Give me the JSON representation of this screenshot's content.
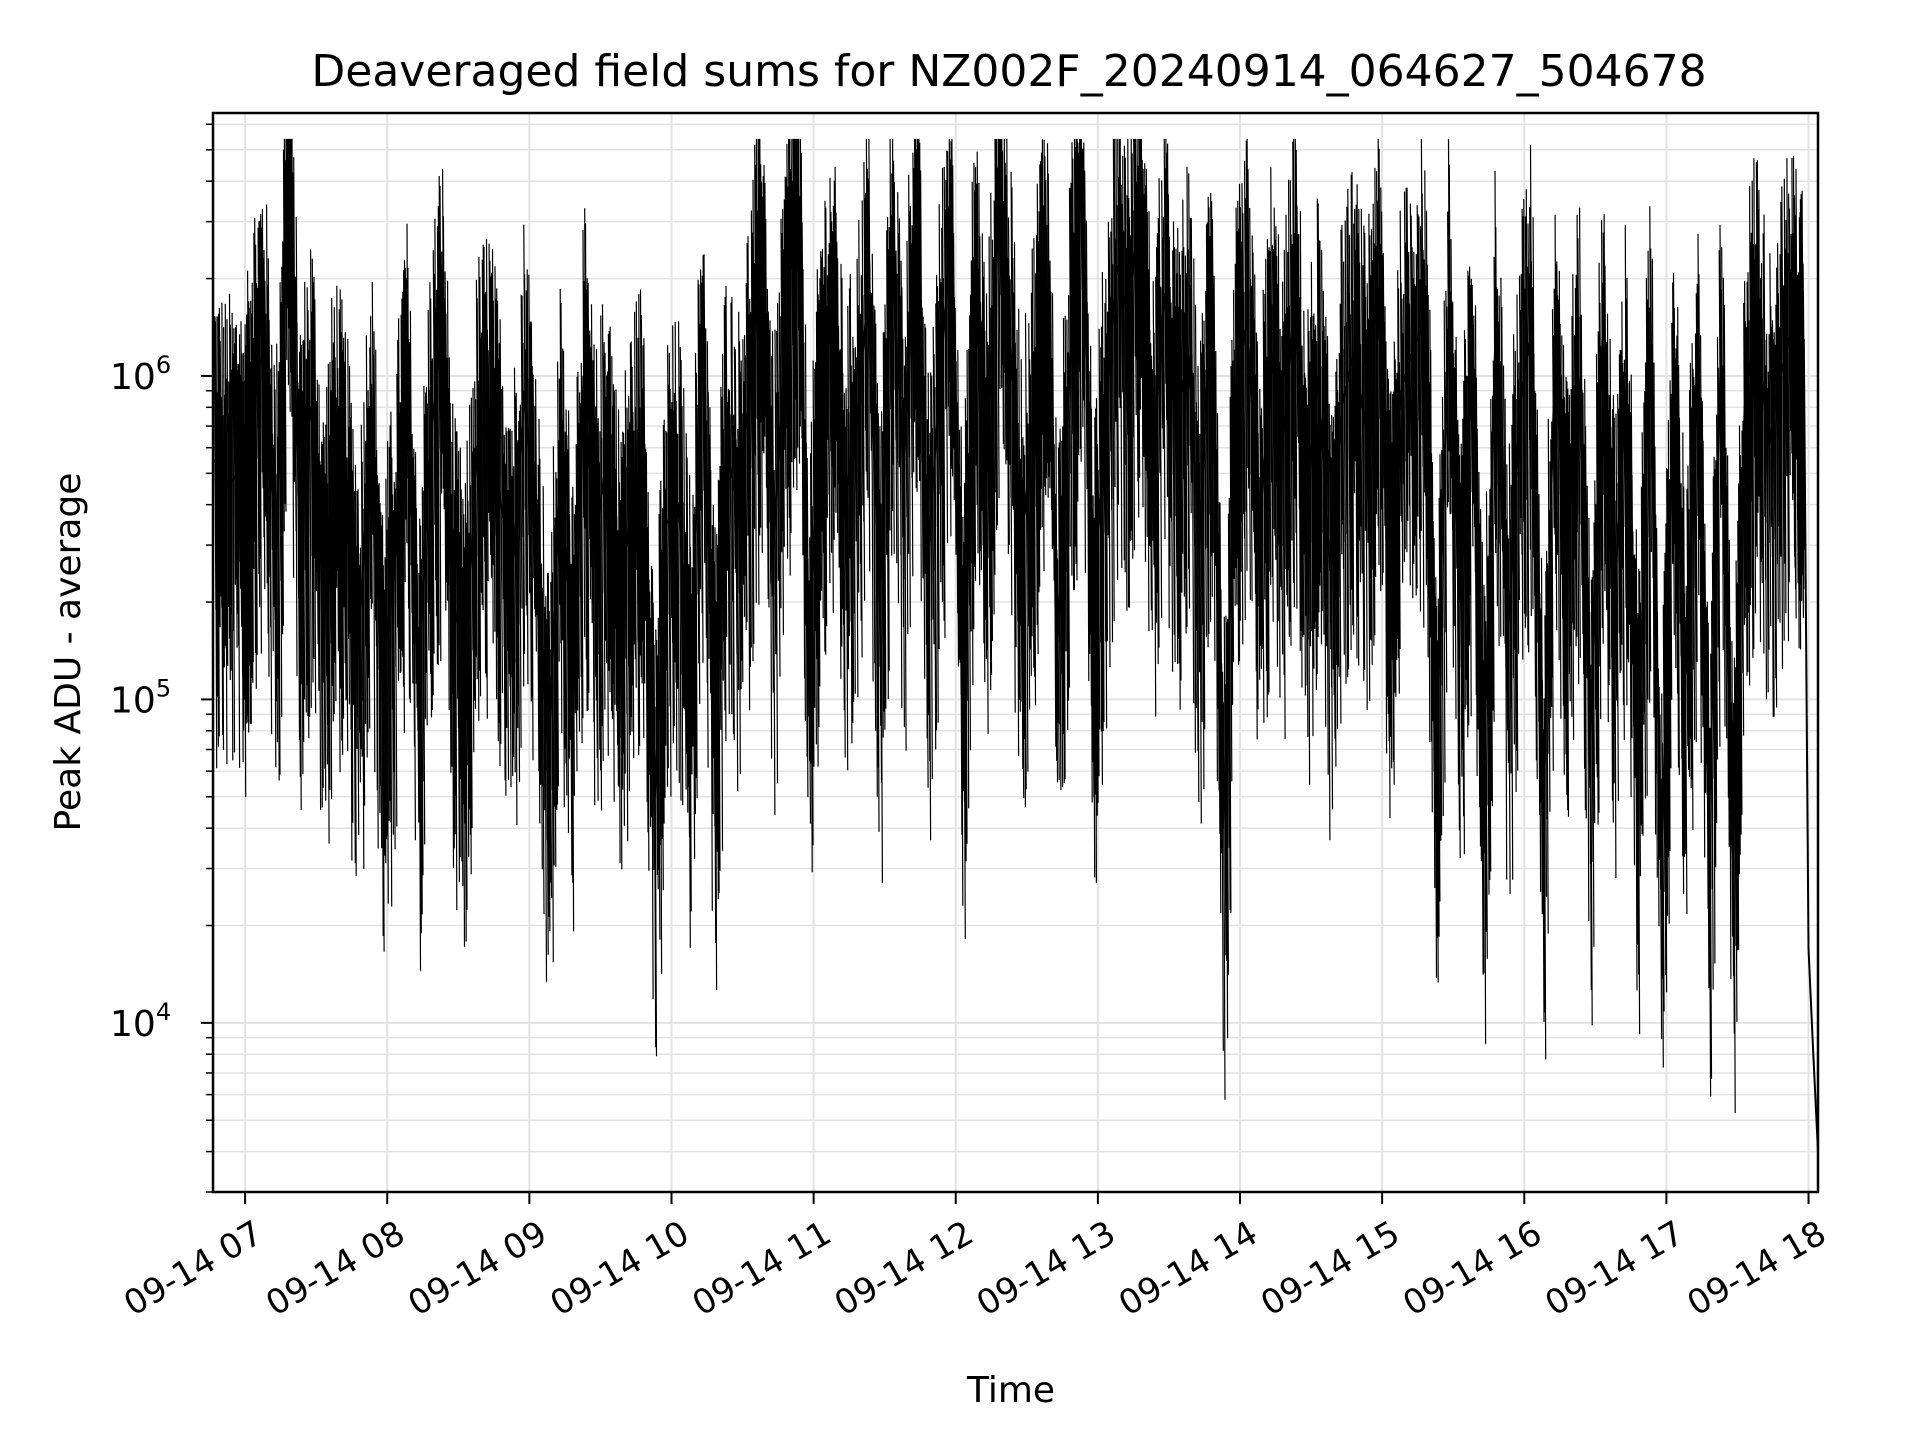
{
  "chart_data": {
    "type": "line",
    "title": "Deaveraged field sums for NZ002F_20240914_064627_504678",
    "xlabel": "Time",
    "ylabel": "Peak ADU - average",
    "yscale": "log",
    "xlim": [
      "2024-09-14 06:46:27",
      "2024-09-14 18:04:00"
    ],
    "ylim": [
      3000,
      6500000
    ],
    "grid": true,
    "legend": "none",
    "line_color": "#000000",
    "x_ticks": [
      {
        "label": "09-14 07",
        "time": "2024-09-14 07:00"
      },
      {
        "label": "09-14 08",
        "time": "2024-09-14 08:00"
      },
      {
        "label": "09-14 09",
        "time": "2024-09-14 09:00"
      },
      {
        "label": "09-14 10",
        "time": "2024-09-14 10:00"
      },
      {
        "label": "09-14 11",
        "time": "2024-09-14 11:00"
      },
      {
        "label": "09-14 12",
        "time": "2024-09-14 12:00"
      },
      {
        "label": "09-14 13",
        "time": "2024-09-14 13:00"
      },
      {
        "label": "09-14 14",
        "time": "2024-09-14 14:00"
      },
      {
        "label": "09-14 15",
        "time": "2024-09-14 15:00"
      },
      {
        "label": "09-14 16",
        "time": "2024-09-14 16:00"
      },
      {
        "label": "09-14 17",
        "time": "2024-09-14 17:00"
      },
      {
        "label": "09-14 18",
        "time": "2024-09-14 18:00"
      }
    ],
    "y_ticks": [
      {
        "base": "10",
        "exp": "4",
        "value": 10000
      },
      {
        "base": "10",
        "exp": "5",
        "value": 100000
      },
      {
        "base": "10",
        "exp": "6",
        "value": 1000000
      }
    ],
    "series": [
      {
        "x": [
          "2024-09-14 06:47",
          "2024-09-14 06:52",
          "2024-09-14 06:57",
          "2024-09-14 07:00",
          "2024-09-14 07:03",
          "2024-09-14 07:08",
          "2024-09-14 07:13",
          "2024-09-14 07:18",
          "2024-09-14 07:23",
          "2024-09-14 07:28",
          "2024-09-14 07:33",
          "2024-09-14 07:38",
          "2024-09-14 07:43",
          "2024-09-14 07:48",
          "2024-09-14 07:53",
          "2024-09-14 07:58",
          "2024-09-14 08:03",
          "2024-09-14 08:08",
          "2024-09-14 08:13",
          "2024-09-14 08:18",
          "2024-09-14 08:23",
          "2024-09-14 08:28",
          "2024-09-14 08:33",
          "2024-09-14 08:38",
          "2024-09-14 08:43",
          "2024-09-14 08:48",
          "2024-09-14 08:53",
          "2024-09-14 08:58",
          "2024-09-14 09:03",
          "2024-09-14 09:08",
          "2024-09-14 09:13",
          "2024-09-14 09:18",
          "2024-09-14 09:23",
          "2024-09-14 09:28",
          "2024-09-14 09:33",
          "2024-09-14 09:38",
          "2024-09-14 09:43",
          "2024-09-14 09:48",
          "2024-09-14 09:53",
          "2024-09-14 09:58",
          "2024-09-14 10:03",
          "2024-09-14 10:08",
          "2024-09-14 10:13",
          "2024-09-14 10:18",
          "2024-09-14 10:23",
          "2024-09-14 10:28",
          "2024-09-14 10:33",
          "2024-09-14 10:38",
          "2024-09-14 10:43",
          "2024-09-14 10:48",
          "2024-09-14 10:53",
          "2024-09-14 10:58",
          "2024-09-14 11:03",
          "2024-09-14 11:08",
          "2024-09-14 11:13",
          "2024-09-14 11:18",
          "2024-09-14 11:23",
          "2024-09-14 11:28",
          "2024-09-14 11:33",
          "2024-09-14 11:38",
          "2024-09-14 11:43",
          "2024-09-14 11:48",
          "2024-09-14 11:53",
          "2024-09-14 11:58",
          "2024-09-14 12:03",
          "2024-09-14 12:08",
          "2024-09-14 12:13",
          "2024-09-14 12:18",
          "2024-09-14 12:23",
          "2024-09-14 12:28",
          "2024-09-14 12:33",
          "2024-09-14 12:38",
          "2024-09-14 12:43",
          "2024-09-14 12:48",
          "2024-09-14 12:53",
          "2024-09-14 12:58",
          "2024-09-14 13:03",
          "2024-09-14 13:08",
          "2024-09-14 13:13",
          "2024-09-14 13:18",
          "2024-09-14 13:23",
          "2024-09-14 13:28",
          "2024-09-14 13:33",
          "2024-09-14 13:38",
          "2024-09-14 13:43",
          "2024-09-14 13:48",
          "2024-09-14 13:53",
          "2024-09-14 13:58",
          "2024-09-14 14:03",
          "2024-09-14 14:08",
          "2024-09-14 14:13",
          "2024-09-14 14:18",
          "2024-09-14 14:23",
          "2024-09-14 14:28",
          "2024-09-14 14:33",
          "2024-09-14 14:38",
          "2024-09-14 14:43",
          "2024-09-14 14:48",
          "2024-09-14 14:53",
          "2024-09-14 14:58",
          "2024-09-14 15:03",
          "2024-09-14 15:08",
          "2024-09-14 15:13",
          "2024-09-14 15:18",
          "2024-09-14 15:23",
          "2024-09-14 15:28",
          "2024-09-14 15:33",
          "2024-09-14 15:38",
          "2024-09-14 15:43",
          "2024-09-14 15:48",
          "2024-09-14 15:53",
          "2024-09-14 15:58",
          "2024-09-14 16:03",
          "2024-09-14 16:08",
          "2024-09-14 16:13",
          "2024-09-14 16:18",
          "2024-09-14 16:23",
          "2024-09-14 16:28",
          "2024-09-14 16:33",
          "2024-09-14 16:38",
          "2024-09-14 16:43",
          "2024-09-14 16:48",
          "2024-09-14 16:53",
          "2024-09-14 16:58",
          "2024-09-14 17:03",
          "2024-09-14 17:08",
          "2024-09-14 17:13",
          "2024-09-14 17:18",
          "2024-09-14 17:23",
          "2024-09-14 17:28",
          "2024-09-14 17:33",
          "2024-09-14 17:38",
          "2024-09-14 17:43",
          "2024-09-14 17:48",
          "2024-09-14 17:53",
          "2024-09-14 17:56",
          "2024-09-14 17:58",
          "2024-09-14 18:00",
          "2024-09-14 18:02",
          "2024-09-14 18:04"
        ],
        "values": [
          550000,
          450000,
          500000,
          400000,
          900000,
          1200000,
          280000,
          4500000,
          400000,
          800000,
          220000,
          600000,
          350000,
          150000,
          700000,
          120000,
          250000,
          900000,
          110000,
          600000,
          1400000,
          200000,
          130000,
          600000,
          800000,
          400000,
          250000,
          900000,
          300000,
          65000,
          500000,
          150000,
          900000,
          300000,
          600000,
          200000,
          400000,
          550000,
          50000,
          350000,
          400000,
          120000,
          1200000,
          90000,
          600000,
          400000,
          900000,
          2500000,
          300000,
          1300000,
          4000000,
          150000,
          900000,
          1500000,
          400000,
          700000,
          1800000,
          200000,
          2500000,
          500000,
          3500000,
          250000,
          900000,
          2800000,
          120000,
          2000000,
          500000,
          3500000,
          1200000,
          300000,
          800000,
          2500000,
          150000,
          1000000,
          4200000,
          200000,
          700000,
          2200000,
          1500000,
          3800000,
          500000,
          1800000,
          700000,
          1200000,
          300000,
          2000000,
          40000,
          800000,
          1500000,
          300000,
          1200000,
          600000,
          1800000,
          400000,
          1000000,
          250000,
          800000,
          1200000,
          700000,
          1900000,
          300000,
          900000,
          1200000,
          1500000,
          80000,
          1400000,
          200000,
          1000000,
          60000,
          1500000,
          150000,
          800000,
          1400000,
          50000,
          1200000,
          300000,
          1000000,
          80000,
          1300000,
          200000,
          900000,
          60000,
          1300000,
          30000,
          1000000,
          120000,
          900000,
          40000,
          1200000,
          30000,
          800000,
          1500000,
          600000,
          1000000,
          1400000,
          1000000,
          1300000,
          17000,
          8000,
          4000
        ]
      }
    ]
  }
}
